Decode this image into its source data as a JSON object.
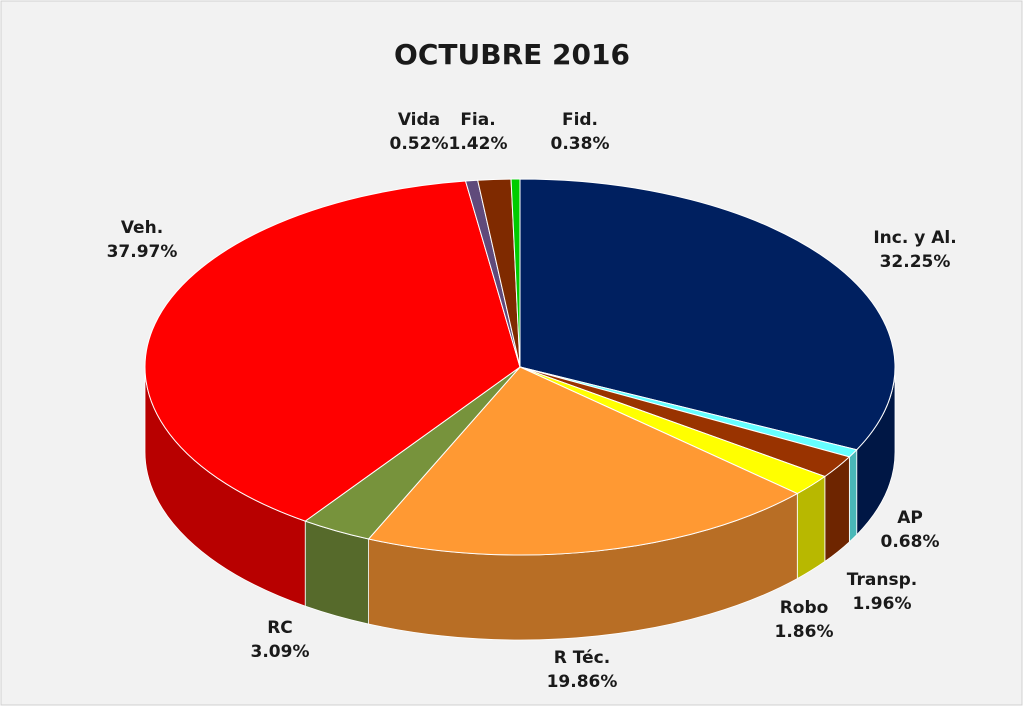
{
  "chart_data": {
    "type": "pie3d",
    "title": "OCTUBRE 2016",
    "categories": [
      "Inc. y Al.",
      "AP",
      "Transp.",
      "Robo",
      "R Téc.",
      "RC",
      "Veh.",
      "Vida",
      "Fia.",
      "Fid."
    ],
    "values": [
      32.25,
      0.68,
      1.96,
      1.86,
      19.86,
      3.09,
      37.97,
      0.52,
      1.42,
      0.38
    ],
    "value_labels": [
      "32.25%",
      "0.68%",
      "1.96%",
      "1.86%",
      "19.86%",
      "3.09%",
      "37.97%",
      "0.52%",
      "1.42%",
      "0.38%"
    ],
    "colors": [
      "#002060",
      "#66ffff",
      "#993300",
      "#ffff00",
      "#ff9933",
      "#77933c",
      "#ff0000",
      "#604a7b",
      "#7f2a00",
      "#00cc00"
    ]
  }
}
